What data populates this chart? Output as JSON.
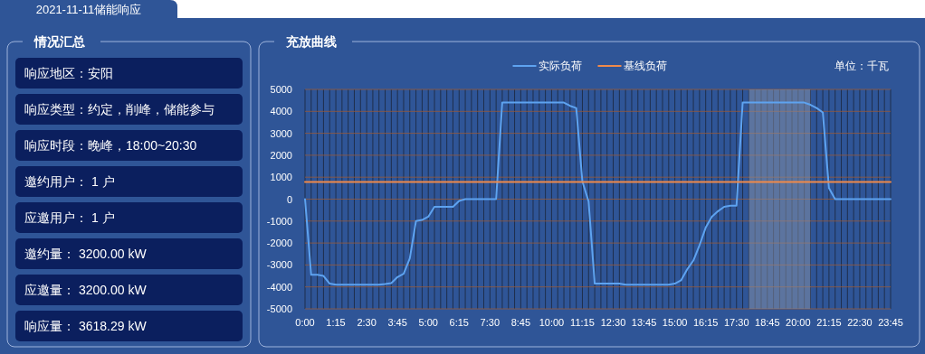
{
  "chart_data": [
    {
      "type": "other",
      "title": "2021-11-11储能响应"
    },
    {
      "type": "other",
      "title": "情况汇总",
      "annotations": [
        "响应地区：安阳",
        "响应类型：约定，削峰，储能参与",
        "响应时段：晚峰，18:00~20:30",
        "邀约用户： 1 户",
        "应邀用户： 1 户",
        "邀约量： 3200.00 kW",
        "应邀量： 3200.00 kW",
        "响应量： 3618.29 kW"
      ]
    },
    {
      "type": "line",
      "title": "充放曲线",
      "ylabel": "单位：千瓦",
      "legend": "top",
      "grid": true,
      "x": [
        0,
        0.25,
        0.5,
        0.75,
        1,
        1.25,
        1.5,
        1.75,
        2,
        2.25,
        2.5,
        2.75,
        3,
        3.25,
        3.5,
        3.75,
        4,
        4.25,
        4.5,
        4.75,
        5,
        5.25,
        5.5,
        5.75,
        6,
        6.25,
        6.5,
        6.75,
        7,
        7.25,
        7.5,
        7.75,
        8,
        8.25,
        8.5,
        8.75,
        9,
        9.25,
        9.5,
        9.75,
        10,
        10.25,
        10.5,
        10.75,
        11,
        11.25,
        11.5,
        11.75,
        12,
        12.25,
        12.5,
        12.75,
        13,
        13.25,
        13.5,
        13.75,
        14,
        14.25,
        14.5,
        14.75,
        15,
        15.25,
        15.5,
        15.75,
        16,
        16.25,
        16.5,
        16.75,
        17,
        17.25,
        17.5,
        17.75,
        18,
        18.25,
        18.5,
        18.75,
        19,
        19.25,
        19.5,
        19.75,
        20,
        20.25,
        20.5,
        20.75,
        21,
        21.25,
        21.5,
        21.75,
        22,
        22.25,
        22.5,
        22.75,
        23,
        23.25,
        23.5,
        23.75
      ],
      "xlim": [
        0,
        23.75
      ],
      "xticks": [
        {
          "value": 0,
          "label": "0:00"
        },
        {
          "value": 0.25,
          "label": null
        },
        {
          "value": 0.5,
          "label": null
        },
        {
          "value": 0.75,
          "label": null
        },
        {
          "value": 1,
          "label": null
        },
        {
          "value": 1.25,
          "label": "1:15"
        },
        {
          "value": 1.5,
          "label": null
        },
        {
          "value": 1.75,
          "label": null
        },
        {
          "value": 2,
          "label": null
        },
        {
          "value": 2.25,
          "label": null
        },
        {
          "value": 2.5,
          "label": "2:30"
        },
        {
          "value": 2.75,
          "label": null
        },
        {
          "value": 3,
          "label": null
        },
        {
          "value": 3.25,
          "label": null
        },
        {
          "value": 3.5,
          "label": null
        },
        {
          "value": 3.75,
          "label": "3:45"
        },
        {
          "value": 4,
          "label": null
        },
        {
          "value": 4.25,
          "label": null
        },
        {
          "value": 4.5,
          "label": null
        },
        {
          "value": 4.75,
          "label": null
        },
        {
          "value": 5,
          "label": "5:00"
        },
        {
          "value": 5.25,
          "label": null
        },
        {
          "value": 5.5,
          "label": null
        },
        {
          "value": 5.75,
          "label": null
        },
        {
          "value": 6,
          "label": null
        },
        {
          "value": 6.25,
          "label": "6:15"
        },
        {
          "value": 6.5,
          "label": null
        },
        {
          "value": 6.75,
          "label": null
        },
        {
          "value": 7,
          "label": null
        },
        {
          "value": 7.25,
          "label": null
        },
        {
          "value": 7.5,
          "label": "7:30"
        },
        {
          "value": 7.75,
          "label": null
        },
        {
          "value": 8,
          "label": null
        },
        {
          "value": 8.25,
          "label": null
        },
        {
          "value": 8.5,
          "label": null
        },
        {
          "value": 8.75,
          "label": "8:45"
        },
        {
          "value": 9,
          "label": null
        },
        {
          "value": 9.25,
          "label": null
        },
        {
          "value": 9.5,
          "label": null
        },
        {
          "value": 9.75,
          "label": null
        },
        {
          "value": 10,
          "label": "10:00"
        },
        {
          "value": 10.25,
          "label": null
        },
        {
          "value": 10.5,
          "label": null
        },
        {
          "value": 10.75,
          "label": null
        },
        {
          "value": 11,
          "label": null
        },
        {
          "value": 11.25,
          "label": "11:15"
        },
        {
          "value": 11.5,
          "label": null
        },
        {
          "value": 11.75,
          "label": null
        },
        {
          "value": 12,
          "label": null
        },
        {
          "value": 12.25,
          "label": null
        },
        {
          "value": 12.5,
          "label": "12:30"
        },
        {
          "value": 12.75,
          "label": null
        },
        {
          "value": 13,
          "label": null
        },
        {
          "value": 13.25,
          "label": null
        },
        {
          "value": 13.5,
          "label": null
        },
        {
          "value": 13.75,
          "label": "13:45"
        },
        {
          "value": 14,
          "label": null
        },
        {
          "value": 14.25,
          "label": null
        },
        {
          "value": 14.5,
          "label": null
        },
        {
          "value": 14.75,
          "label": null
        },
        {
          "value": 15,
          "label": "15:00"
        },
        {
          "value": 15.25,
          "label": null
        },
        {
          "value": 15.5,
          "label": null
        },
        {
          "value": 15.75,
          "label": null
        },
        {
          "value": 16,
          "label": null
        },
        {
          "value": 16.25,
          "label": "16:15"
        },
        {
          "value": 16.5,
          "label": null
        },
        {
          "value": 16.75,
          "label": null
        },
        {
          "value": 17,
          "label": null
        },
        {
          "value": 17.25,
          "label": null
        },
        {
          "value": 17.5,
          "label": "17:30"
        },
        {
          "value": 17.75,
          "label": null
        },
        {
          "value": 18,
          "label": null
        },
        {
          "value": 18.25,
          "label": null
        },
        {
          "value": 18.5,
          "label": null
        },
        {
          "value": 18.75,
          "label": "18:45"
        },
        {
          "value": 19,
          "label": null
        },
        {
          "value": 19.25,
          "label": null
        },
        {
          "value": 19.5,
          "label": null
        },
        {
          "value": 19.75,
          "label": null
        },
        {
          "value": 20,
          "label": "20:00"
        },
        {
          "value": 20.25,
          "label": null
        },
        {
          "value": 20.5,
          "label": null
        },
        {
          "value": 20.75,
          "label": null
        },
        {
          "value": 21,
          "label": null
        },
        {
          "value": 21.25,
          "label": "21:15"
        },
        {
          "value": 21.5,
          "label": null
        },
        {
          "value": 21.75,
          "label": null
        },
        {
          "value": 22,
          "label": null
        },
        {
          "value": 22.25,
          "label": null
        },
        {
          "value": 22.5,
          "label": "22:30"
        },
        {
          "value": 22.75,
          "label": null
        },
        {
          "value": 23,
          "label": null
        },
        {
          "value": 23.25,
          "label": null
        },
        {
          "value": 23.5,
          "label": null
        },
        {
          "value": 23.75,
          "label": "23:45"
        }
      ],
      "ylim": [
        -5000,
        5000
      ],
      "yticks": [
        -5000,
        -4000,
        -3000,
        -2000,
        -1000,
        0,
        1000,
        2000,
        3000,
        4000,
        5000
      ],
      "bands": [
        {
          "axis": "x",
          "from": 18,
          "to": 20.5,
          "color": "#8a94a8"
        }
      ],
      "series": [
        {
          "name": "实际负荷",
          "color": "#5ea3f0",
          "values": [
            0,
            -3450,
            -3450,
            -3500,
            -3850,
            -3900,
            -3900,
            -3900,
            -3900,
            -3900,
            -3900,
            -3900,
            -3900,
            -3870,
            -3830,
            -3550,
            -3400,
            -2700,
            -1000,
            -950,
            -800,
            -350,
            -350,
            -350,
            -350,
            -80,
            0,
            0,
            0,
            0,
            0,
            0,
            4400,
            4400,
            4400,
            4400,
            4400,
            4400,
            4400,
            4400,
            4400,
            4400,
            4400,
            4250,
            4150,
            800,
            -100,
            -3850,
            -3850,
            -3850,
            -3850,
            -3850,
            -3900,
            -3900,
            -3900,
            -3900,
            -3900,
            -3900,
            -3900,
            -3900,
            -3850,
            -3700,
            -3200,
            -2800,
            -2100,
            -1300,
            -800,
            -550,
            -350,
            -300,
            -300,
            4400,
            4400,
            4400,
            4400,
            4400,
            4400,
            4400,
            4400,
            4400,
            4400,
            4400,
            4300,
            4150,
            3950,
            500,
            0,
            0,
            0,
            0,
            0,
            0,
            0,
            0,
            0,
            0
          ]
        },
        {
          "name": "基线负荷",
          "color": "#f08a4b",
          "x": [
            0,
            23.75
          ],
          "values": [
            780,
            780
          ]
        }
      ]
    }
  ]
}
